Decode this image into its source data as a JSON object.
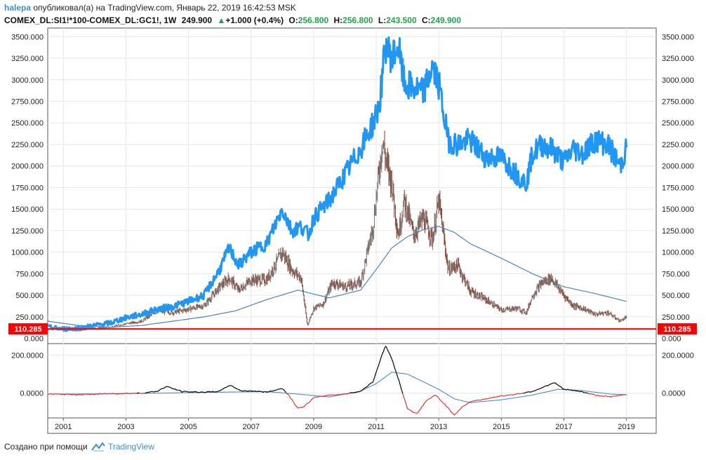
{
  "header": {
    "author": "halepa",
    "published_text": "опубликовал(а) на TradingView.com, Январь 22, 2019 16:42:53 MSK",
    "symbol": "COMEX_DL:SI1!*100-COMEX_DL:GC1!, 1W",
    "last": "249.900",
    "change": "+1.000 (+0.4%)",
    "o_label": "O:",
    "o_value": "256.800",
    "h_label": "H:",
    "h_value": "256.800",
    "l_label": "L:",
    "l_value": "243.500",
    "c_label": "C:",
    "c_value": "249.900"
  },
  "footer": {
    "text": "Создано при помощи",
    "brand": "TradingView"
  },
  "colors": {
    "blue_line": "#2196f3",
    "ma_line": "#4a86b4",
    "red_line": "#ff0000",
    "candle_up": "#808080",
    "candle_down": "#8b4a3a",
    "osc_black": "#000000",
    "osc_red": "#e03030",
    "osc_blue": "#4a90c0"
  },
  "chart_data": {
    "type": "line",
    "main_panel": {
      "y_ticks": [
        "3500.000",
        "3250.000",
        "3000.000",
        "2750.000",
        "2500.000",
        "2250.000",
        "2000.000",
        "1750.000",
        "1500.000",
        "1250.000",
        "1000.000",
        "750.000",
        "500.000",
        "250.000",
        "0.000"
      ],
      "y_range": [
        -60,
        3600
      ],
      "horizontal_line": {
        "value": 110.285,
        "label": "110.285"
      },
      "series": [
        {
          "name": "blue price line",
          "x": [
            2000.5,
            2001.0,
            2001.5,
            2002.0,
            2002.5,
            2003.0,
            2003.5,
            2004.0,
            2004.5,
            2005.0,
            2005.5,
            2006.0,
            2006.3,
            2006.6,
            2007.0,
            2007.5,
            2008.0,
            2008.3,
            2008.6,
            2008.85,
            2009.0,
            2009.5,
            2010.0,
            2010.5,
            2010.9,
            2011.1,
            2011.3,
            2011.5,
            2011.7,
            2011.9,
            2012.2,
            2012.5,
            2012.8,
            2013.0,
            2013.3,
            2013.6,
            2014.0,
            2014.5,
            2015.0,
            2015.5,
            2015.8,
            2016.0,
            2016.3,
            2016.6,
            2017.0,
            2017.3,
            2017.6,
            2018.0,
            2018.4,
            2018.8,
            2019.0
          ],
          "values": [
            130,
            110,
            120,
            150,
            180,
            240,
            280,
            340,
            370,
            430,
            500,
            800,
            1050,
            850,
            1000,
            1100,
            1500,
            1250,
            1300,
            1200,
            1400,
            1600,
            1900,
            2200,
            2500,
            2700,
            3400,
            3250,
            3400,
            2950,
            2900,
            2850,
            3150,
            2950,
            2300,
            2250,
            2300,
            2100,
            2100,
            1900,
            1800,
            2150,
            2250,
            2200,
            2050,
            2200,
            2150,
            2300,
            2250,
            2000,
            2200
          ]
        },
        {
          "name": "moving average",
          "x": [
            2000.5,
            2001.5,
            2002.5,
            2003.5,
            2004.5,
            2005.5,
            2006.5,
            2007.5,
            2008.5,
            2009.5,
            2010.5,
            2011.0,
            2011.5,
            2012.0,
            2012.5,
            2013.0,
            2013.5,
            2014.0,
            2015.0,
            2016.0,
            2017.0,
            2018.0,
            2019.0
          ],
          "values": [
            200,
            150,
            130,
            150,
            200,
            250,
            320,
            450,
            560,
            470,
            560,
            800,
            1050,
            1180,
            1260,
            1300,
            1230,
            1100,
            930,
            750,
            600,
            520,
            430
          ]
        },
        {
          "name": "candles (close approx)",
          "x": [
            2000.5,
            2001.0,
            2001.5,
            2002.0,
            2002.5,
            2003.0,
            2003.5,
            2004.0,
            2004.5,
            2005.0,
            2005.5,
            2006.0,
            2006.3,
            2006.6,
            2007.0,
            2007.5,
            2008.0,
            2008.3,
            2008.6,
            2008.8,
            2009.0,
            2009.3,
            2009.6,
            2010.0,
            2010.5,
            2010.9,
            2011.2,
            2011.35,
            2011.5,
            2011.7,
            2011.9,
            2012.2,
            2012.5,
            2012.8,
            2013.0,
            2013.3,
            2013.6,
            2014.0,
            2014.5,
            2015.0,
            2015.5,
            2015.8,
            2016.0,
            2016.3,
            2016.6,
            2017.0,
            2017.3,
            2017.6,
            2018.0,
            2018.4,
            2018.8,
            2019.0
          ],
          "values": [
            110,
            100,
            90,
            120,
            130,
            170,
            200,
            320,
            300,
            340,
            380,
            600,
            700,
            560,
            680,
            680,
            1000,
            800,
            700,
            150,
            350,
            400,
            650,
            600,
            650,
            1300,
            2300,
            2000,
            1800,
            1200,
            1600,
            1200,
            1400,
            1150,
            1600,
            800,
            850,
            550,
            450,
            330,
            350,
            300,
            500,
            650,
            700,
            500,
            380,
            350,
            280,
            300,
            200,
            250
          ]
        }
      ]
    },
    "osc_panel": {
      "y_ticks": [
        "200.0000",
        "0.0000"
      ],
      "y_range": [
        -130,
        260
      ],
      "series": [
        {
          "name": "oscillator",
          "x": [
            2000.5,
            2001.5,
            2002.5,
            2003.5,
            2004.0,
            2004.3,
            2004.8,
            2005.5,
            2006.0,
            2006.3,
            2006.7,
            2007.0,
            2007.5,
            2008.0,
            2008.2,
            2008.5,
            2008.7,
            2009.0,
            2009.5,
            2010.0,
            2010.5,
            2010.9,
            2011.1,
            2011.3,
            2011.5,
            2011.7,
            2011.9,
            2012.0,
            2012.3,
            2012.6,
            2012.9,
            2013.2,
            2013.5,
            2013.7,
            2014.0,
            2014.5,
            2015.0,
            2015.5,
            2016.0,
            2016.4,
            2016.7,
            2017.0,
            2017.5,
            2018.0,
            2018.5,
            2019.0
          ],
          "values": [
            -5,
            -8,
            -3,
            0,
            10,
            35,
            8,
            5,
            10,
            42,
            12,
            12,
            5,
            25,
            -10,
            -80,
            -70,
            -25,
            -10,
            -5,
            10,
            60,
            160,
            250,
            180,
            80,
            -30,
            -80,
            -110,
            -40,
            -10,
            -60,
            -115,
            -80,
            -45,
            -30,
            -15,
            -5,
            10,
            35,
            55,
            20,
            10,
            -10,
            -20,
            -5
          ]
        },
        {
          "name": "signal",
          "x": [
            2000.5,
            2002.0,
            2004.0,
            2006.0,
            2007.5,
            2008.5,
            2009.5,
            2010.5,
            2011.0,
            2011.5,
            2012.0,
            2012.5,
            2013.0,
            2013.5,
            2014.0,
            2015.0,
            2016.0,
            2016.8,
            2017.5,
            2018.5,
            2019.0
          ],
          "values": [
            -5,
            -4,
            0,
            5,
            8,
            -5,
            -20,
            10,
            50,
            110,
            100,
            60,
            20,
            -30,
            -50,
            -35,
            -10,
            20,
            15,
            -5,
            -8
          ]
        }
      ]
    },
    "x_ticks": [
      "2001",
      "2003",
      "2005",
      "2007",
      "2009",
      "2011",
      "2013",
      "2015",
      "2017",
      "2019"
    ],
    "x_range": [
      2000.5,
      2019.95
    ]
  }
}
